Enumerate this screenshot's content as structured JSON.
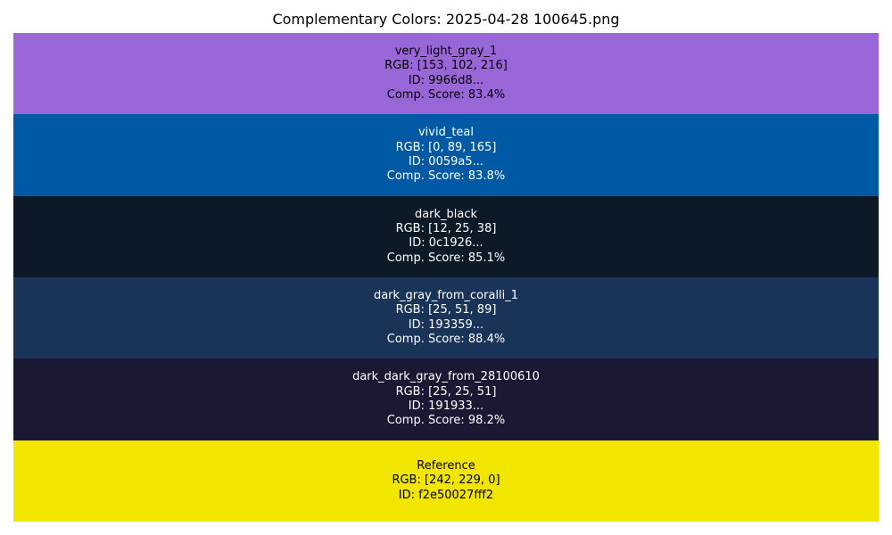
{
  "chart_data": {
    "type": "table",
    "title": "Complementary Colors: 2025-04-28 100645.png",
    "rows": [
      {
        "name": "very_light_gray_1",
        "rgb_label": "RGB: [153, 102, 216]",
        "id_label": "ID: 9966d8...",
        "score_label": "Comp. Score: 83.4%",
        "rgb": [
          153,
          102,
          216
        ],
        "score": 83.4,
        "color": "#9966d8",
        "text_color": "#000000"
      },
      {
        "name": "vivid_teal",
        "rgb_label": "RGB: [0, 89, 165]",
        "id_label": "ID: 0059a5...",
        "score_label": "Comp. Score: 83.8%",
        "rgb": [
          0,
          89,
          165
        ],
        "score": 83.8,
        "color": "#0059a5",
        "text_color": "#ffffff"
      },
      {
        "name": "dark_black",
        "rgb_label": "RGB: [12, 25, 38]",
        "id_label": "ID: 0c1926...",
        "score_label": "Comp. Score: 85.1%",
        "rgb": [
          12,
          25,
          38
        ],
        "score": 85.1,
        "color": "#0c1926",
        "text_color": "#ffffff"
      },
      {
        "name": "dark_gray_from_coralli_1",
        "rgb_label": "RGB: [25, 51, 89]",
        "id_label": "ID: 193359...",
        "score_label": "Comp. Score: 88.4%",
        "rgb": [
          25,
          51,
          89
        ],
        "score": 88.4,
        "color": "#193359",
        "text_color": "#ffffff"
      },
      {
        "name": "dark_dark_gray_from_28100610",
        "rgb_label": "RGB: [25, 25, 51]",
        "id_label": "ID: 191933...",
        "score_label": "Comp. Score: 98.2%",
        "rgb": [
          25,
          25,
          51
        ],
        "score": 98.2,
        "color": "#191933",
        "text_color": "#ffffff"
      },
      {
        "name": "Reference",
        "rgb_label": "RGB: [242, 229, 0]",
        "id_label": "ID: f2e50027fff2",
        "score_label": "",
        "rgb": [
          242,
          229,
          0
        ],
        "color": "#f2e500",
        "text_color": "#000000"
      }
    ]
  }
}
